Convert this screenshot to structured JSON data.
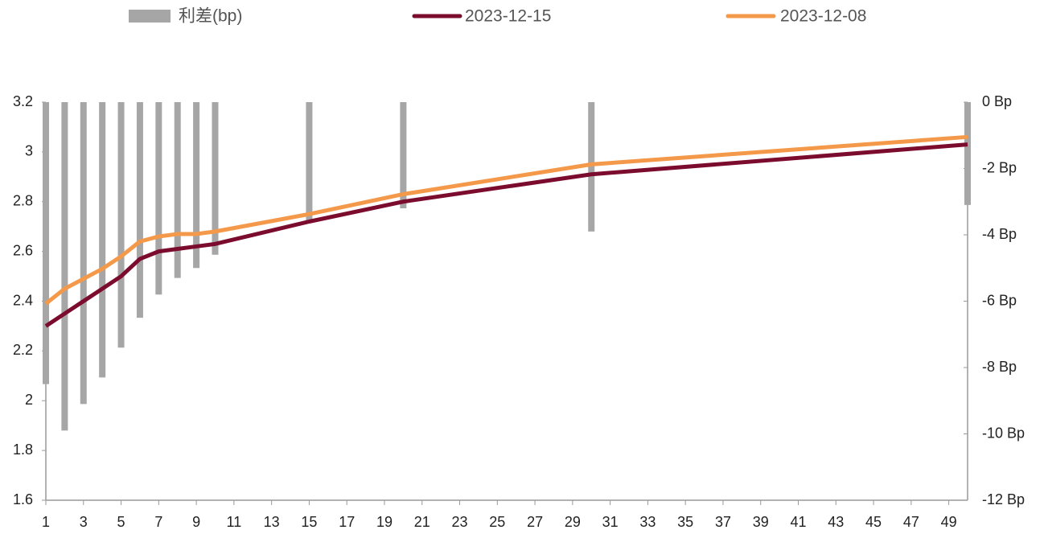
{
  "chart_data": {
    "type": "combo",
    "x": [
      1,
      2,
      3,
      4,
      5,
      6,
      7,
      8,
      9,
      10,
      15,
      20,
      30,
      50
    ],
    "series": [
      {
        "name": "利差(bp)",
        "type": "bar",
        "axis": "y2",
        "color": "#a6a6a6",
        "values": [
          -8.5,
          -9.9,
          -9.1,
          -8.3,
          -7.4,
          -6.5,
          -5.8,
          -5.3,
          -5.0,
          -4.6,
          -3.6,
          -3.2,
          -3.9,
          -3.1
        ]
      },
      {
        "name": "2023-12-15",
        "type": "line",
        "color": "#7b0c2e",
        "values": [
          2.3,
          2.35,
          2.4,
          2.45,
          2.5,
          2.57,
          2.6,
          2.61,
          2.62,
          2.63,
          2.72,
          2.8,
          2.91,
          3.03
        ]
      },
      {
        "name": "2023-12-08",
        "type": "line",
        "color": "#f4994a",
        "values": [
          2.39,
          2.45,
          2.49,
          2.53,
          2.58,
          2.64,
          2.66,
          2.67,
          2.67,
          2.68,
          2.75,
          2.83,
          2.95,
          3.06
        ]
      }
    ],
    "xlim": [
      1,
      50
    ],
    "xticks": [
      1,
      3,
      5,
      7,
      9,
      11,
      13,
      15,
      17,
      19,
      21,
      23,
      25,
      27,
      29,
      31,
      33,
      35,
      37,
      39,
      41,
      43,
      45,
      47,
      49
    ],
    "ylim": [
      1.6,
      3.2
    ],
    "yticks": [
      1.6,
      1.8,
      2,
      2.2,
      2.4,
      2.6,
      2.8,
      3,
      3.2
    ],
    "y2lim": [
      -12,
      0
    ],
    "y2ticks": [
      {
        "value": -12,
        "label": "-12 Bp"
      },
      {
        "value": -10,
        "label": "-10 Bp"
      },
      {
        "value": -8,
        "label": "-8 Bp"
      },
      {
        "value": -6,
        "label": "-6 Bp"
      },
      {
        "value": -4,
        "label": "-4 Bp"
      },
      {
        "value": -2,
        "label": "-2 Bp"
      },
      {
        "value": 0,
        "label": "0 Bp"
      }
    ],
    "legend": "top"
  }
}
